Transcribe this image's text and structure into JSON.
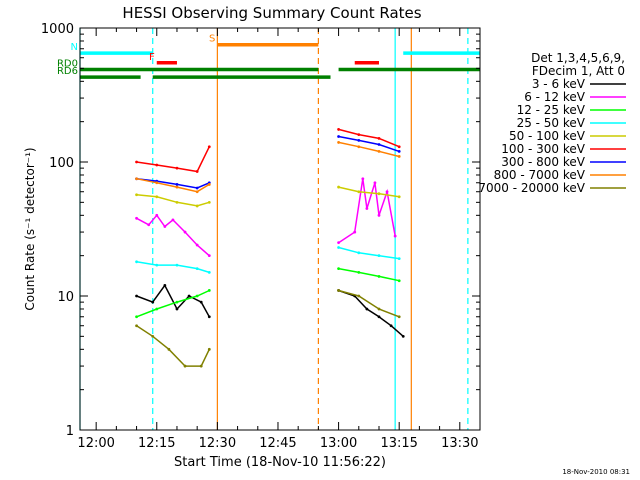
{
  "chart_data": {
    "type": "line",
    "title": "HESSI Observing Summary Count Rates",
    "xlabel": "Start Time (18-Nov-10 11:56:22)",
    "ylabel": "Count Rate (s⁻¹ detector⁻¹)",
    "yscale": "log",
    "ylim": [
      1,
      1000
    ],
    "xlim": [
      "11:56",
      "13:35"
    ],
    "x_ticks": [
      "12:00",
      "12:15",
      "12:30",
      "12:45",
      "13:00",
      "13:15",
      "13:30"
    ],
    "y_ticks": [
      "1",
      "10",
      "100",
      "1000"
    ],
    "footer": "18-Nov-2010 08:31",
    "legend": {
      "placement": "right",
      "header_lines": [
        "Det 1,3,4,5,6,9,",
        "FDecim 1, Att 0"
      ]
    },
    "series": [
      {
        "name": "3 - 6 keV",
        "color": "#000000",
        "segments": [
          {
            "x": [
              "12:10",
              "12:14",
              "12:17",
              "12:20",
              "12:23",
              "12:26",
              "12:28"
            ],
            "y": [
              10,
              9,
              12,
              8,
              10,
              9,
              7
            ]
          },
          {
            "x": [
              "13:00",
              "13:04",
              "13:07",
              "13:10",
              "13:13",
              "13:16"
            ],
            "y": [
              11,
              10,
              8,
              7,
              6,
              5
            ]
          }
        ]
      },
      {
        "name": "6 - 12 keV",
        "color": "#ff00ff",
        "segments": [
          {
            "x": [
              "12:10",
              "12:13",
              "12:15",
              "12:17",
              "12:19",
              "12:22",
              "12:25",
              "12:28"
            ],
            "y": [
              38,
              34,
              40,
              33,
              37,
              30,
              24,
              20
            ]
          },
          {
            "x": [
              "13:00",
              "13:04",
              "13:06",
              "13:07",
              "13:09",
              "13:10",
              "13:12",
              "13:14"
            ],
            "y": [
              25,
              30,
              75,
              45,
              70,
              40,
              60,
              28
            ]
          }
        ]
      },
      {
        "name": "12 - 25 keV",
        "color": "#00ff00",
        "segments": [
          {
            "x": [
              "12:10",
              "12:15",
              "12:20",
              "12:25",
              "12:28"
            ],
            "y": [
              7,
              8,
              9,
              10,
              11
            ]
          },
          {
            "x": [
              "13:00",
              "13:05",
              "13:10",
              "13:15"
            ],
            "y": [
              16,
              15,
              14,
              13
            ]
          }
        ]
      },
      {
        "name": "25 - 50 keV",
        "color": "#00ffff",
        "segments": [
          {
            "x": [
              "12:10",
              "12:15",
              "12:20",
              "12:25",
              "12:28"
            ],
            "y": [
              18,
              17,
              17,
              16,
              15
            ]
          },
          {
            "x": [
              "13:00",
              "13:05",
              "13:10",
              "13:15"
            ],
            "y": [
              23,
              21,
              20,
              19
            ]
          }
        ]
      },
      {
        "name": "50 - 100 keV",
        "color": "#cccc00",
        "segments": [
          {
            "x": [
              "12:10",
              "12:15",
              "12:20",
              "12:25",
              "12:28"
            ],
            "y": [
              57,
              55,
              50,
              47,
              50
            ]
          },
          {
            "x": [
              "13:00",
              "13:05",
              "13:10",
              "13:15"
            ],
            "y": [
              65,
              60,
              58,
              55
            ]
          }
        ]
      },
      {
        "name": "100 - 300 keV",
        "color": "#ff0000",
        "segments": [
          {
            "x": [
              "12:10",
              "12:15",
              "12:20",
              "12:25",
              "12:28"
            ],
            "y": [
              100,
              95,
              90,
              85,
              130
            ]
          },
          {
            "x": [
              "13:00",
              "13:05",
              "13:10",
              "13:15"
            ],
            "y": [
              175,
              160,
              150,
              130
            ]
          }
        ]
      },
      {
        "name": "300 - 800 keV",
        "color": "#0000ff",
        "segments": [
          {
            "x": [
              "12:10",
              "12:15",
              "12:20",
              "12:25",
              "12:28"
            ],
            "y": [
              75,
              72,
              68,
              64,
              70
            ]
          },
          {
            "x": [
              "13:00",
              "13:05",
              "13:10",
              "13:15"
            ],
            "y": [
              155,
              145,
              135,
              120
            ]
          }
        ]
      },
      {
        "name": "800 - 7000 keV",
        "color": "#ff8000",
        "segments": [
          {
            "x": [
              "12:10",
              "12:15",
              "12:20",
              "12:25",
              "12:28"
            ],
            "y": [
              75,
              70,
              65,
              60,
              68
            ]
          },
          {
            "x": [
              "13:00",
              "13:05",
              "13:10",
              "13:15"
            ],
            "y": [
              140,
              130,
              120,
              110
            ]
          }
        ]
      },
      {
        "name": "7000 - 20000 keV",
        "color": "#808000",
        "segments": [
          {
            "x": [
              "12:10",
              "12:14",
              "12:18",
              "12:22",
              "12:26",
              "12:28"
            ],
            "y": [
              6,
              5,
              4,
              3,
              3,
              4
            ]
          },
          {
            "x": [
              "13:00",
              "13:05",
              "13:10",
              "13:15"
            ],
            "y": [
              11,
              10,
              8,
              7
            ]
          }
        ]
      }
    ],
    "flags": [
      {
        "label": "N",
        "color": "#00ffff",
        "x": [
          "11:56",
          "12:14"
        ],
        "y": 650
      },
      {
        "label": "",
        "color": "#00ffff",
        "x": [
          "13:16",
          "13:35"
        ],
        "y": 650
      },
      {
        "label": "S",
        "color": "#ff8000",
        "x": [
          "12:30",
          "12:55"
        ],
        "y": 750
      },
      {
        "label": "F",
        "color": "#ff0000",
        "x": [
          "12:15",
          "12:20"
        ],
        "y": 550
      },
      {
        "label": "",
        "color": "#ff0000",
        "x": [
          "13:04",
          "13:10"
        ],
        "y": 550
      },
      {
        "label": "RD0",
        "color": "#008000",
        "x": [
          "11:56",
          "12:55"
        ],
        "y": 490
      },
      {
        "label": "",
        "color": "#008000",
        "x": [
          "13:00",
          "13:35"
        ],
        "y": 490
      },
      {
        "label": "RD6",
        "color": "#008000",
        "x": [
          "11:56",
          "12:11"
        ],
        "y": 430
      },
      {
        "label": "",
        "color": "#008000",
        "x": [
          "12:14",
          "12:58"
        ],
        "y": 430
      }
    ],
    "vlines": [
      {
        "x": "11:56",
        "color": "#00ffff",
        "style": "solid"
      },
      {
        "x": "12:14",
        "color": "#00ffff",
        "style": "dashed"
      },
      {
        "x": "12:30",
        "color": "#ff8000",
        "style": "solid"
      },
      {
        "x": "12:55",
        "color": "#ff8000",
        "style": "dashed"
      },
      {
        "x": "13:14",
        "color": "#00ffff",
        "style": "solid"
      },
      {
        "x": "13:18",
        "color": "#ff8000",
        "style": "solid"
      },
      {
        "x": "13:32",
        "color": "#00ffff",
        "style": "dashed"
      }
    ]
  }
}
